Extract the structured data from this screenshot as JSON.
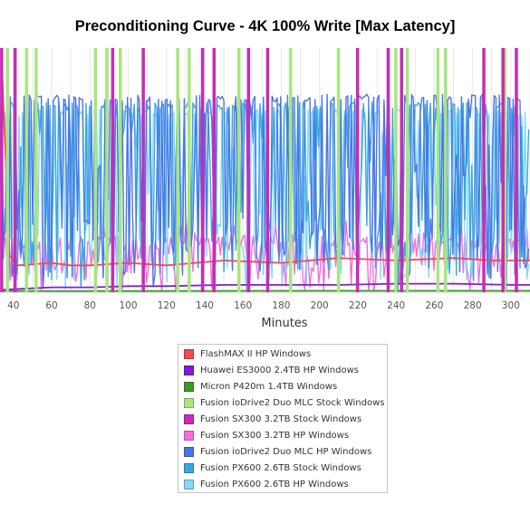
{
  "chart_data": {
    "type": "line",
    "title": "Preconditioning Curve - 4K 100% Write [Max Latency]",
    "xlabel": "Minutes",
    "ylabel": "",
    "xlim": [
      33,
      310
    ],
    "ylim": [
      0,
      100
    ],
    "x_ticks": [
      40,
      60,
      80,
      100,
      120,
      140,
      160,
      180,
      200,
      220,
      240,
      260,
      280,
      300
    ],
    "grid": true,
    "legend_position": "bottom",
    "series": [
      {
        "name": "FlashMAX II HP Windows",
        "color": "#ef4b55",
        "baseline": 10,
        "spike_every": 40,
        "points": [
          [
            34,
            92
          ],
          [
            38,
            15
          ],
          [
            42,
            11
          ],
          [
            60,
            12
          ],
          [
            70,
            11
          ],
          [
            80,
            11
          ],
          [
            100,
            12
          ],
          [
            120,
            11
          ],
          [
            150,
            13
          ],
          [
            180,
            12
          ],
          [
            210,
            14
          ],
          [
            240,
            13
          ],
          [
            270,
            14
          ],
          [
            290,
            13
          ],
          [
            310,
            13
          ]
        ]
      },
      {
        "name": "Huawei ES3000 2.4TB HP Windows",
        "color": "#7d1ddb",
        "baseline": 2,
        "points": [
          [
            34,
            1
          ],
          [
            60,
            2
          ],
          [
            80,
            2
          ],
          [
            100,
            2.5
          ],
          [
            120,
            2.5
          ],
          [
            150,
            3
          ],
          [
            180,
            3
          ],
          [
            210,
            3
          ],
          [
            240,
            3.5
          ],
          [
            270,
            3.5
          ],
          [
            300,
            3
          ],
          [
            310,
            3
          ]
        ]
      },
      {
        "name": "Micron P420m 1.4TB Windows",
        "color": "#3c9a25",
        "baseline": 0.6,
        "points": [
          [
            34,
            0.5
          ],
          [
            100,
            0.5
          ],
          [
            200,
            0.6
          ],
          [
            310,
            0.6
          ]
        ]
      },
      {
        "name": "Fusion ioDrive2 Duo MLC Stock Windows",
        "color": "#a8e67e",
        "style": "spikes",
        "points": [
          [
            37,
            100
          ],
          [
            47,
            100
          ],
          [
            52,
            100
          ],
          [
            83,
            100
          ],
          [
            89,
            100
          ],
          [
            96,
            100
          ],
          [
            126,
            100
          ],
          [
            132,
            100
          ],
          [
            158,
            100
          ],
          [
            185,
            100
          ],
          [
            210,
            100
          ],
          [
            240,
            100
          ],
          [
            246,
            100
          ],
          [
            262,
            100
          ],
          [
            266,
            100
          ],
          [
            297,
            100
          ]
        ]
      },
      {
        "name": "Fusion SX300 3.2TB Stock Windows",
        "color": "#c72cb4",
        "style": "spikes",
        "points": [
          [
            34,
            100
          ],
          [
            41,
            100
          ],
          [
            92,
            100
          ],
          [
            108,
            100
          ],
          [
            139,
            100
          ],
          [
            145,
            100
          ],
          [
            163,
            100
          ],
          [
            173,
            100
          ],
          [
            220,
            100
          ],
          [
            236,
            100
          ],
          [
            243,
            100
          ],
          [
            286,
            100
          ],
          [
            296,
            100
          ],
          [
            303,
            100
          ]
        ]
      },
      {
        "name": "Fusion SX300 3.2TB HP Windows",
        "color": "#f070df",
        "baseline": 20,
        "points": [
          [
            34,
            20
          ],
          [
            310,
            20
          ]
        ]
      },
      {
        "name": "Fusion ioDrive2 Duo MLC HP Windows",
        "color": "#4a76e6",
        "baseline": 78,
        "points": [
          [
            34,
            78
          ],
          [
            310,
            78
          ]
        ]
      },
      {
        "name": "Fusion PX600 2.6TB Stock Windows",
        "color": "#3aa6e0",
        "baseline": 75,
        "points": [
          [
            34,
            75
          ],
          [
            310,
            75
          ]
        ]
      },
      {
        "name": "Fusion PX600 2.6TB HP Windows",
        "color": "#84d8f7",
        "baseline": 72,
        "points": [
          [
            34,
            72
          ],
          [
            310,
            72
          ]
        ]
      }
    ]
  }
}
